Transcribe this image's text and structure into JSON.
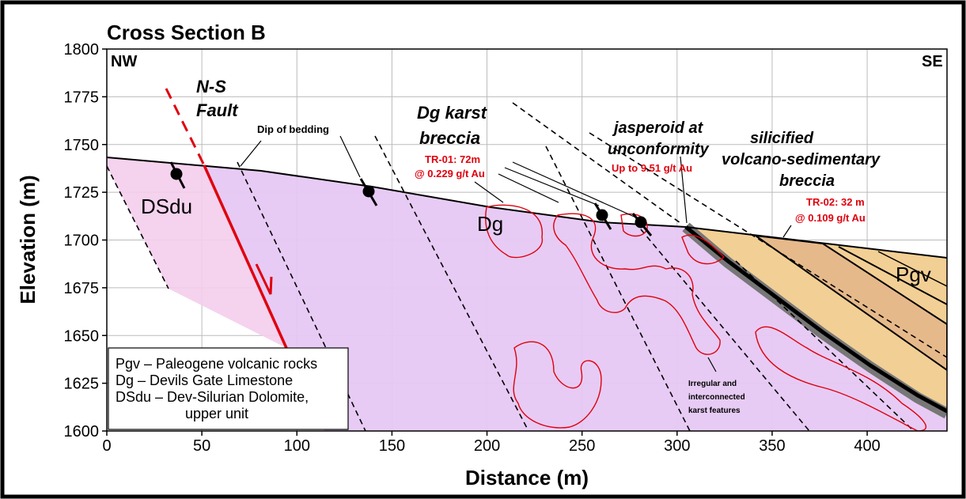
{
  "chart_data": {
    "type": "cross-section",
    "title": "Cross Section B",
    "xlabel": "Distance (m)",
    "ylabel": "Elevation (m)",
    "xlim": [
      0,
      442
    ],
    "ylim": [
      1600,
      1800
    ],
    "xticks": [
      0,
      50,
      100,
      150,
      200,
      250,
      300,
      350,
      400
    ],
    "yticks": [
      1600,
      1625,
      1650,
      1675,
      1700,
      1725,
      1750,
      1775,
      1800
    ],
    "grid": true,
    "annotations": [
      "NW",
      "SE",
      "N-S",
      "Fault",
      "Dip of bedding",
      "Dg karst",
      "breccia",
      "TR-01: 72m",
      "@ 0.229 g/t Au",
      "jasperoid at",
      "unconformity",
      "Up to 9.51 g/t Au",
      "silicified",
      "volcano-sedimentary",
      "breccia",
      "TR-02: 32 m",
      "@ 0.109 g/t Au",
      "DSdu",
      "Dg",
      "Pgv",
      "Irregular and",
      "interconnected",
      "karst features"
    ],
    "legend": [
      "Pgv – Paleogene volcanic rocks",
      "Dg – Devils Gate Limestone",
      "DSdu – Dev-Silurian Dolomite,",
      "upper unit"
    ]
  }
}
